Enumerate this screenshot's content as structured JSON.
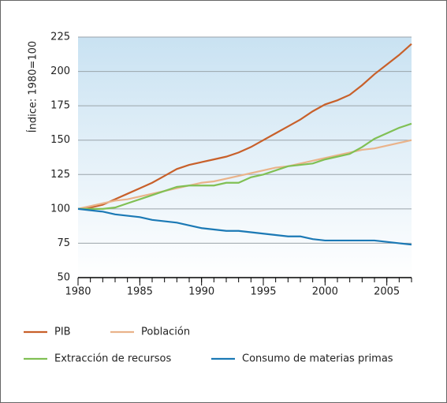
{
  "chart_data": {
    "type": "line",
    "y_label": "Índice: 1980=100",
    "x": [
      1980,
      1981,
      1982,
      1983,
      1984,
      1985,
      1986,
      1987,
      1988,
      1989,
      1990,
      1991,
      1992,
      1993,
      1994,
      1995,
      1996,
      1997,
      1998,
      1999,
      2000,
      2001,
      2002,
      2003,
      2004,
      2005,
      2006,
      2007
    ],
    "series": [
      {
        "name": "PIB",
        "color": "#c8602a",
        "values": [
          100,
          101,
          103,
          107,
          111,
          115,
          119,
          124,
          129,
          132,
          134,
          136,
          138,
          141,
          145,
          150,
          155,
          160,
          165,
          171,
          176,
          179,
          183,
          190,
          198,
          205,
          212,
          220
        ]
      },
      {
        "name": "Población",
        "color": "#eab38a",
        "values": [
          100,
          102,
          104,
          106,
          107,
          109,
          111,
          113,
          115,
          117,
          119,
          120,
          122,
          124,
          126,
          128,
          130,
          131,
          133,
          135,
          137,
          139,
          141,
          143,
          144,
          146,
          148,
          150
        ]
      },
      {
        "name": "Extracción de recursos",
        "color": "#80c054",
        "values": [
          100,
          100,
          100,
          101,
          104,
          107,
          110,
          113,
          116,
          117,
          117,
          117,
          119,
          119,
          123,
          125,
          128,
          131,
          132,
          133,
          136,
          138,
          140,
          145,
          151,
          155,
          159,
          162
        ]
      },
      {
        "name": "Consumo de materias primas",
        "color": "#1b79b5",
        "values": [
          100,
          99,
          98,
          96,
          95,
          94,
          92,
          91,
          90,
          88,
          86,
          85,
          84,
          84,
          83,
          82,
          81,
          80,
          80,
          78,
          77,
          77,
          77,
          77,
          77,
          76,
          75,
          74
        ]
      }
    ],
    "xlim": [
      1980,
      2007
    ],
    "xticks": [
      1980,
      1985,
      1990,
      1995,
      2000,
      2005
    ],
    "xminorticks": [
      1980,
      1981,
      1982,
      1983,
      1984,
      1985,
      1986,
      1987,
      1988,
      1989,
      1990,
      1991,
      1992,
      1993,
      1994,
      1995,
      1996,
      1997,
      1998,
      1999,
      2000,
      2001,
      2002,
      2003,
      2004,
      2005,
      2006,
      2007
    ],
    "ylim": [
      50,
      225
    ],
    "yticks": [
      50,
      75,
      100,
      125,
      150,
      175,
      200,
      225
    ],
    "grid": true
  }
}
